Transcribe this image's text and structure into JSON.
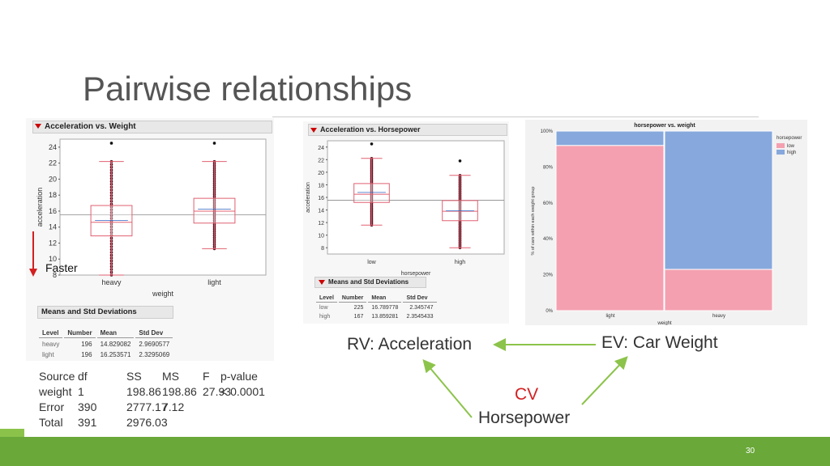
{
  "slide": {
    "title": "Pairwise relationships",
    "page_number": "30"
  },
  "panel1": {
    "header": "Acceleration vs. Weight",
    "ylabel": "acceleration",
    "xlabel": "weight",
    "yticks": [
      "24",
      "22",
      "20",
      "18",
      "16",
      "14",
      "12",
      "10",
      "8"
    ],
    "categories": [
      "heavy",
      "light"
    ],
    "faster_label": "Faster",
    "means_header": "Means and Std Deviations",
    "means_cols": [
      "Level",
      "Number",
      "Mean",
      "Std Dev"
    ],
    "means_rows": [
      [
        "heavy",
        "196",
        "14.829082",
        "2.9690577"
      ],
      [
        "light",
        "196",
        "16.253571",
        "2.3295069"
      ]
    ]
  },
  "anova": {
    "cols": [
      "Source",
      "df",
      "SS",
      "MS",
      "F",
      "p-value"
    ],
    "rows": [
      [
        "weight",
        "1",
        "198.86",
        "198.86",
        "27.93",
        "< 0.0001"
      ],
      [
        "Error",
        "390",
        "2777.17",
        "7.12",
        "",
        ""
      ],
      [
        "Total",
        "391",
        "2976.03",
        "",
        "",
        ""
      ]
    ]
  },
  "panel2": {
    "header": "Acceleration vs. Horsepower",
    "ylabel": "acceleration",
    "xlabel": "horsepower",
    "yticks": [
      "24",
      "22",
      "20",
      "18",
      "16",
      "14",
      "12",
      "10",
      "8"
    ],
    "categories": [
      "low",
      "high"
    ],
    "means_header": "Means and Std Deviations",
    "means_cols": [
      "Level",
      "Number",
      "Mean",
      "Std Dev"
    ],
    "means_rows": [
      [
        "low",
        "225",
        "16.789778",
        "2.345747"
      ],
      [
        "high",
        "167",
        "13.859281",
        "2.3545433"
      ]
    ]
  },
  "panel3": {
    "title": "horsepower vs. weight",
    "ylabel": "% of cars within each weight group",
    "xlabel": "weight",
    "yticks": [
      "100%",
      "80%",
      "60%",
      "40%",
      "20%",
      "0%"
    ],
    "categories": [
      "light",
      "heavy"
    ],
    "legend_title": "horsepower",
    "legend": [
      {
        "name": "low",
        "color": "#f4a0b0"
      },
      {
        "name": "high",
        "color": "#86a8dc"
      }
    ]
  },
  "chart_data": [
    {
      "type": "box",
      "title": "Acceleration vs. Weight",
      "xlabel": "weight",
      "ylabel": "acceleration",
      "categories": [
        "heavy",
        "light"
      ],
      "ylim": [
        8,
        25
      ],
      "boxes": [
        {
          "q1": 12.9,
          "median": 14.6,
          "q3": 16.7,
          "low": 8,
          "high": 22.2,
          "mean": 14.83
        },
        {
          "q1": 14.5,
          "median": 16.0,
          "q3": 17.6,
          "low": 11.3,
          "high": 22.2,
          "mean": 16.25
        }
      ],
      "grand_mean": 15.54
    },
    {
      "type": "box",
      "title": "Acceleration vs. Horsepower",
      "xlabel": "horsepower",
      "ylabel": "acceleration",
      "categories": [
        "low",
        "high"
      ],
      "ylim": [
        7,
        25
      ],
      "boxes": [
        {
          "q1": 15.2,
          "median": 16.5,
          "q3": 18.2,
          "low": 11.6,
          "high": 22.2,
          "mean": 16.79
        },
        {
          "q1": 12.3,
          "median": 13.8,
          "q3": 15.5,
          "low": 8,
          "high": 19.5,
          "mean": 13.86
        }
      ],
      "grand_mean": 15.54
    },
    {
      "type": "mosaic",
      "title": "horsepower vs. weight",
      "xlabel": "weight",
      "ylabel": "% of cars within each weight group",
      "categories": [
        "light",
        "heavy"
      ],
      "series": [
        {
          "name": "low",
          "values": [
            92,
            23
          ]
        },
        {
          "name": "high",
          "values": [
            8,
            77
          ]
        }
      ]
    }
  ],
  "diagram": {
    "rv": "RV: Acceleration",
    "ev": "EV: Car Weight",
    "cv": "CV",
    "cv_name": "Horsepower",
    "arrow_color": "#8cc34a",
    "cv_color": "#d32020"
  }
}
